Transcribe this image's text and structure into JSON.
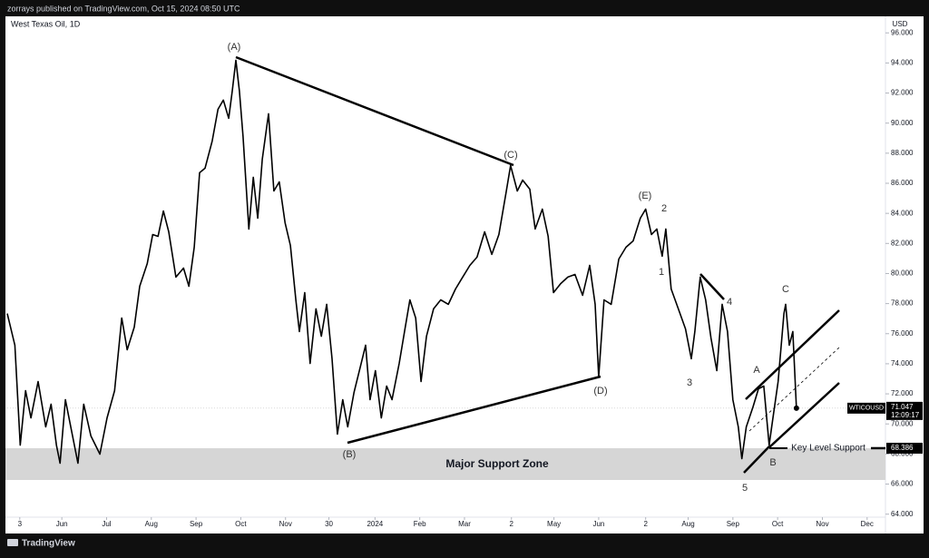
{
  "publisher_line": "zorrays published on TradingView.com, Oct 15, 2024 08:50 UTC",
  "footer": "TradingView",
  "chart_data": {
    "type": "line",
    "title": "West Texas Oil, 1D",
    "y_unit": "USD",
    "color": "#000000",
    "xlim": [
      -0.22,
      19.41
    ],
    "ylim": [
      63.8,
      97.1
    ],
    "xticks": [
      {
        "value": 0.06,
        "label": "3"
      },
      {
        "value": 1,
        "label": "Jun"
      },
      {
        "value": 2,
        "label": "Jul"
      },
      {
        "value": 3,
        "label": "Aug"
      },
      {
        "value": 4,
        "label": "Sep"
      },
      {
        "value": 5,
        "label": "Oct"
      },
      {
        "value": 6,
        "label": "Nov"
      },
      {
        "value": 6.97,
        "label": "30"
      },
      {
        "value": 8,
        "label": "2024"
      },
      {
        "value": 9,
        "label": "Feb"
      },
      {
        "value": 10,
        "label": "Mar"
      },
      {
        "value": 11.05,
        "label": "2"
      },
      {
        "value": 12,
        "label": "May"
      },
      {
        "value": 13,
        "label": "Jun"
      },
      {
        "value": 14.05,
        "label": "2"
      },
      {
        "value": 15,
        "label": "Aug"
      },
      {
        "value": 16,
        "label": "Sep"
      },
      {
        "value": 17,
        "label": "Oct"
      },
      {
        "value": 18,
        "label": "Nov"
      },
      {
        "value": 19,
        "label": "Dec"
      }
    ],
    "yticks": [
      {
        "value": 64,
        "label": "64.000"
      },
      {
        "value": 66,
        "label": "66.000"
      },
      {
        "value": 68,
        "label": "68.000"
      },
      {
        "value": 70,
        "label": "70.000"
      },
      {
        "value": 72,
        "label": "72.000"
      },
      {
        "value": 74,
        "label": "74.000"
      },
      {
        "value": 76,
        "label": "76.000"
      },
      {
        "value": 78,
        "label": "78.000"
      },
      {
        "value": 80,
        "label": "80.000"
      },
      {
        "value": 82,
        "label": "82.000"
      },
      {
        "value": 84,
        "label": "84.000"
      },
      {
        "value": 86,
        "label": "86.000"
      },
      {
        "value": 88,
        "label": "88.000"
      },
      {
        "value": 90,
        "label": "90.000"
      },
      {
        "value": 92,
        "label": "92.000"
      },
      {
        "value": 94,
        "label": "94.000"
      },
      {
        "value": 96,
        "label": "96.000"
      }
    ],
    "x": [
      -0.22,
      -0.05,
      0.07,
      0.19,
      0.31,
      0.47,
      0.64,
      0.76,
      0.88,
      0.96,
      1.08,
      1.2,
      1.36,
      1.49,
      1.65,
      1.85,
      2.01,
      2.18,
      2.34,
      2.46,
      2.62,
      2.74,
      2.91,
      3.03,
      3.15,
      3.27,
      3.39,
      3.55,
      3.72,
      3.84,
      3.96,
      4.08,
      4.2,
      4.36,
      4.49,
      4.61,
      4.73,
      4.81,
      4.89,
      4.97,
      5.05,
      5.18,
      5.28,
      5.38,
      5.48,
      5.62,
      5.74,
      5.86,
      5.99,
      6.11,
      6.23,
      6.31,
      6.43,
      6.55,
      6.68,
      6.8,
      6.92,
      7.04,
      7.16,
      7.28,
      7.39,
      7.53,
      7.69,
      7.79,
      7.89,
      8.01,
      8.14,
      8.26,
      8.38,
      8.54,
      8.66,
      8.78,
      8.91,
      9.03,
      9.15,
      9.31,
      9.47,
      9.64,
      9.8,
      9.96,
      10.12,
      10.28,
      10.45,
      10.61,
      10.77,
      10.93,
      11.03,
      11.18,
      11.3,
      11.46,
      11.58,
      11.74,
      11.87,
      11.99,
      12.15,
      12.31,
      12.47,
      12.64,
      12.8,
      12.92,
      13.0,
      13.12,
      13.28,
      13.45,
      13.61,
      13.77,
      13.93,
      14.05,
      14.18,
      14.3,
      14.42,
      14.5,
      14.62,
      14.78,
      14.94,
      15.07,
      15.15,
      15.27,
      15.39,
      15.51,
      15.64,
      15.76,
      15.88,
      16.0,
      16.12,
      16.2,
      16.3,
      16.45,
      16.57,
      16.69,
      16.81,
      16.89,
      17.01,
      17.14,
      17.18,
      17.26,
      17.34,
      17.42
    ],
    "series": [
      {
        "name": "WTICOUSD",
        "color": "#000000",
        "values": [
          77.34,
          75.23,
          68.59,
          72.21,
          70.4,
          72.82,
          69.8,
          71.31,
          68.59,
          67.39,
          71.61,
          69.8,
          67.39,
          71.31,
          69.2,
          67.99,
          70.4,
          72.21,
          77.04,
          74.93,
          76.44,
          79.15,
          80.66,
          82.59,
          82.47,
          84.16,
          82.77,
          79.76,
          80.36,
          79.15,
          81.75,
          86.7,
          87.0,
          88.81,
          90.92,
          91.53,
          90.32,
          92.13,
          94.18,
          92.13,
          89.11,
          82.96,
          86.4,
          83.68,
          87.6,
          90.62,
          85.49,
          86.09,
          83.38,
          81.87,
          78.25,
          76.14,
          78.73,
          74.02,
          77.65,
          75.83,
          77.95,
          74.33,
          69.32,
          71.61,
          69.8,
          72.09,
          74.02,
          75.23,
          71.61,
          73.54,
          70.4,
          72.52,
          71.61,
          74.02,
          76.14,
          78.25,
          77.04,
          72.82,
          75.83,
          77.65,
          78.25,
          77.95,
          78.97,
          79.76,
          80.54,
          81.09,
          82.77,
          81.27,
          82.59,
          85.37,
          87.18,
          85.49,
          86.21,
          85.61,
          82.96,
          84.28,
          82.47,
          78.73,
          79.33,
          79.76,
          79.94,
          78.55,
          80.54,
          77.95,
          73.12,
          78.25,
          77.95,
          80.96,
          81.75,
          82.17,
          83.68,
          84.28,
          82.59,
          82.96,
          81.15,
          82.96,
          78.97,
          77.65,
          76.32,
          74.33,
          76.14,
          79.76,
          78.25,
          75.71,
          73.54,
          77.95,
          76.14,
          71.61,
          69.8,
          67.69,
          69.8,
          71.13,
          72.33,
          72.52,
          68.59,
          70.28,
          72.82,
          77.34,
          77.95,
          75.23,
          76.14,
          71.01
        ]
      }
    ],
    "last_price": {
      "value": 71.047,
      "countdown": "12:09:17"
    },
    "key_level": {
      "value": 68.386,
      "label": "Key Level Support"
    },
    "zone_label": "Major Support Zone",
    "annotations": [
      "(A)",
      "(B)",
      "(C)",
      "(D)",
      "(E)",
      "1",
      "2",
      "3",
      "4",
      "5",
      "A",
      "B",
      "C"
    ]
  }
}
